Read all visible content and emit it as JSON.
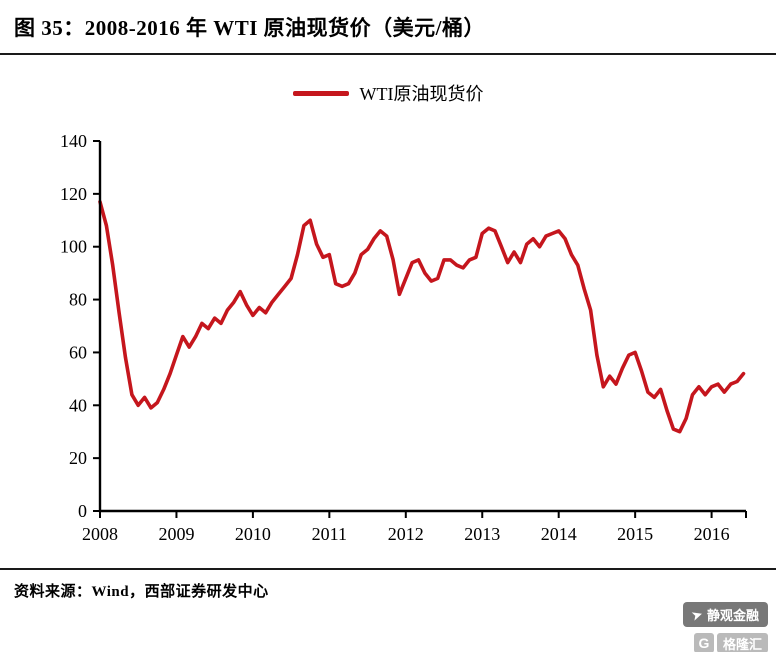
{
  "header": {
    "title": "图 35：2008-2016 年 WTI 原油现货价（美元/桶）"
  },
  "legend": {
    "label": "WTI原油现货价"
  },
  "source": {
    "text": "资料来源：Wind，西部证券研发中心"
  },
  "watermark": {
    "name": "静观金融",
    "logo_icon": "G",
    "logo": "格隆汇"
  },
  "colors": {
    "line": "#c5161d",
    "axis": "#000000"
  },
  "chart_data": {
    "type": "line",
    "title": "2008-2016 年 WTI 原油现货价（美元/桶）",
    "xlabel": "",
    "ylabel": "美元/桶",
    "ylim": [
      0,
      140
    ],
    "y_ticks": [
      0,
      20,
      40,
      60,
      80,
      100,
      120,
      140
    ],
    "x_ticks": [
      2008,
      2009,
      2010,
      2011,
      2012,
      2013,
      2014,
      2015,
      2016
    ],
    "x_start": 2008,
    "x_step": 0.0833333,
    "x_end": 2016.42,
    "grid": false,
    "legend_position": "top-center",
    "series": [
      {
        "name": "WTI原油现货价",
        "color": "#c5161d",
        "values": [
          117,
          108,
          93,
          75,
          58,
          44,
          40,
          43,
          39,
          41,
          46,
          52,
          59,
          66,
          62,
          66,
          71,
          69,
          73,
          71,
          76,
          79,
          83,
          78,
          74,
          77,
          75,
          79,
          82,
          85,
          88,
          97,
          108,
          110,
          101,
          96,
          97,
          86,
          85,
          86,
          90,
          97,
          99,
          103,
          106,
          104,
          95,
          82,
          88,
          94,
          95,
          90,
          87,
          88,
          95,
          95,
          93,
          92,
          95,
          96,
          105,
          107,
          106,
          100,
          94,
          98,
          94,
          101,
          103,
          100,
          104,
          105,
          106,
          103,
          97,
          93,
          84,
          76,
          59,
          47,
          51,
          48,
          54,
          59,
          60,
          53,
          45,
          43,
          46,
          38,
          31,
          30,
          35,
          44,
          47,
          44,
          47,
          48,
          45,
          48,
          49,
          52
        ]
      }
    ]
  }
}
